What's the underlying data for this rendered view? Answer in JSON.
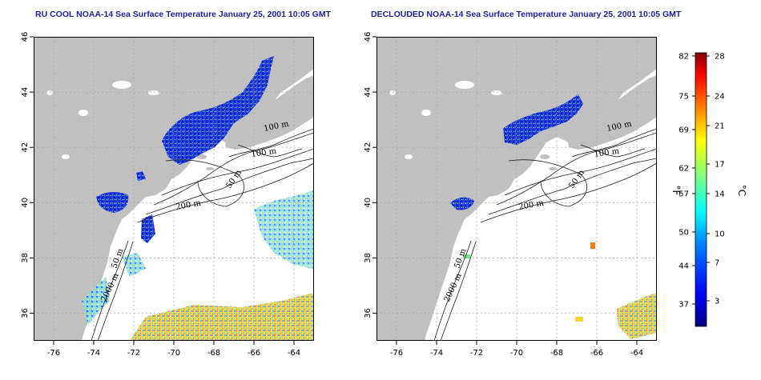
{
  "panels": [
    {
      "title": "RU COOL NOAA-14 Sea Surface Temperature January 25, 2001 10:05 GMT",
      "contour_labels": [
        "100 m",
        "100 m",
        "50 m",
        "200 m",
        "50 m",
        "2000 m"
      ]
    },
    {
      "title": "DECLOUDED NOAA-14 Sea Surface Temperature January 25, 2001 10:05 GMT",
      "contour_labels": [
        "100 m",
        "100 m",
        "50 m",
        "200 m",
        "50 m",
        "2000 m"
      ]
    }
  ],
  "axes": {
    "x_ticks": [
      "-76",
      "-74",
      "-72",
      "-70",
      "-68",
      "-66",
      "-64"
    ],
    "y_ticks": [
      "36",
      "38",
      "40",
      "42",
      "44",
      "46"
    ]
  },
  "colorbar": {
    "fahrenheit_ticks": [
      "82",
      "75",
      "69",
      "62",
      "57",
      "50",
      "44",
      "37"
    ],
    "celsius_ticks": [
      "28",
      "24",
      "21",
      "17",
      "14",
      "10",
      "7",
      "3"
    ],
    "fahrenheit_label": "°F",
    "celsius_label": "°C",
    "colors": [
      "#00007f",
      "#0000ff",
      "#0080ff",
      "#00ffff",
      "#80ff80",
      "#ffff00",
      "#ff8000",
      "#ff0000",
      "#7f0000"
    ]
  },
  "colors": {
    "land": "#c0c0c0",
    "title": "#1f1f9e"
  }
}
